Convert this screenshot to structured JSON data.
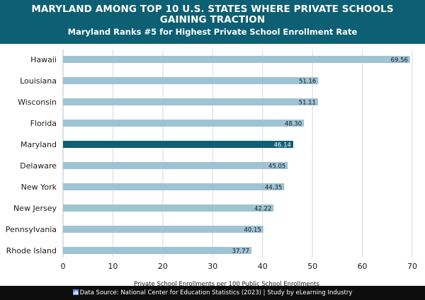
{
  "header": {
    "title_line1": "MARYLAND AMONG TOP 10 U.S. STATES WHERE PRIVATE SCHOOLS",
    "title_line2": "GAINING TRACTION",
    "subtitle": "Maryland Ranks #5 for Highest Private School Enrollment Rate"
  },
  "footer": {
    "icon": "bar-chart-icon",
    "text": "Data Source: National Center for Education Statistics (2023) | Study by eLearning Industry"
  },
  "colors": {
    "header_bg": "#0d5f73",
    "bar_default": "#9ec3d4",
    "bar_highlight": "#0d5f73",
    "footer_bg": "#0d0d0d"
  },
  "chart_data": {
    "type": "bar",
    "orientation": "horizontal",
    "categories": [
      "Hawaii",
      "Louisiana",
      "Wisconsin",
      "Florida",
      "Maryland",
      "Delaware",
      "New York",
      "New Jersey",
      "Pennsylvania",
      "Rhode Island"
    ],
    "values": [
      69.56,
      51.16,
      51.11,
      48.3,
      46.14,
      45.05,
      44.35,
      42.22,
      40.15,
      37.77
    ],
    "value_labels": [
      "69.56",
      "51.16",
      "51.11",
      "48.30",
      "46.14",
      "45.05",
      "44.35",
      "42.22",
      "40.15",
      "37.77"
    ],
    "highlight": "Maryland",
    "xlabel": "Private School Enrollments per 100 Public School Enrollments",
    "xlim": [
      0,
      70
    ],
    "xticks": [
      0,
      10,
      20,
      30,
      40,
      50,
      60,
      70
    ],
    "grid": "vertical"
  }
}
